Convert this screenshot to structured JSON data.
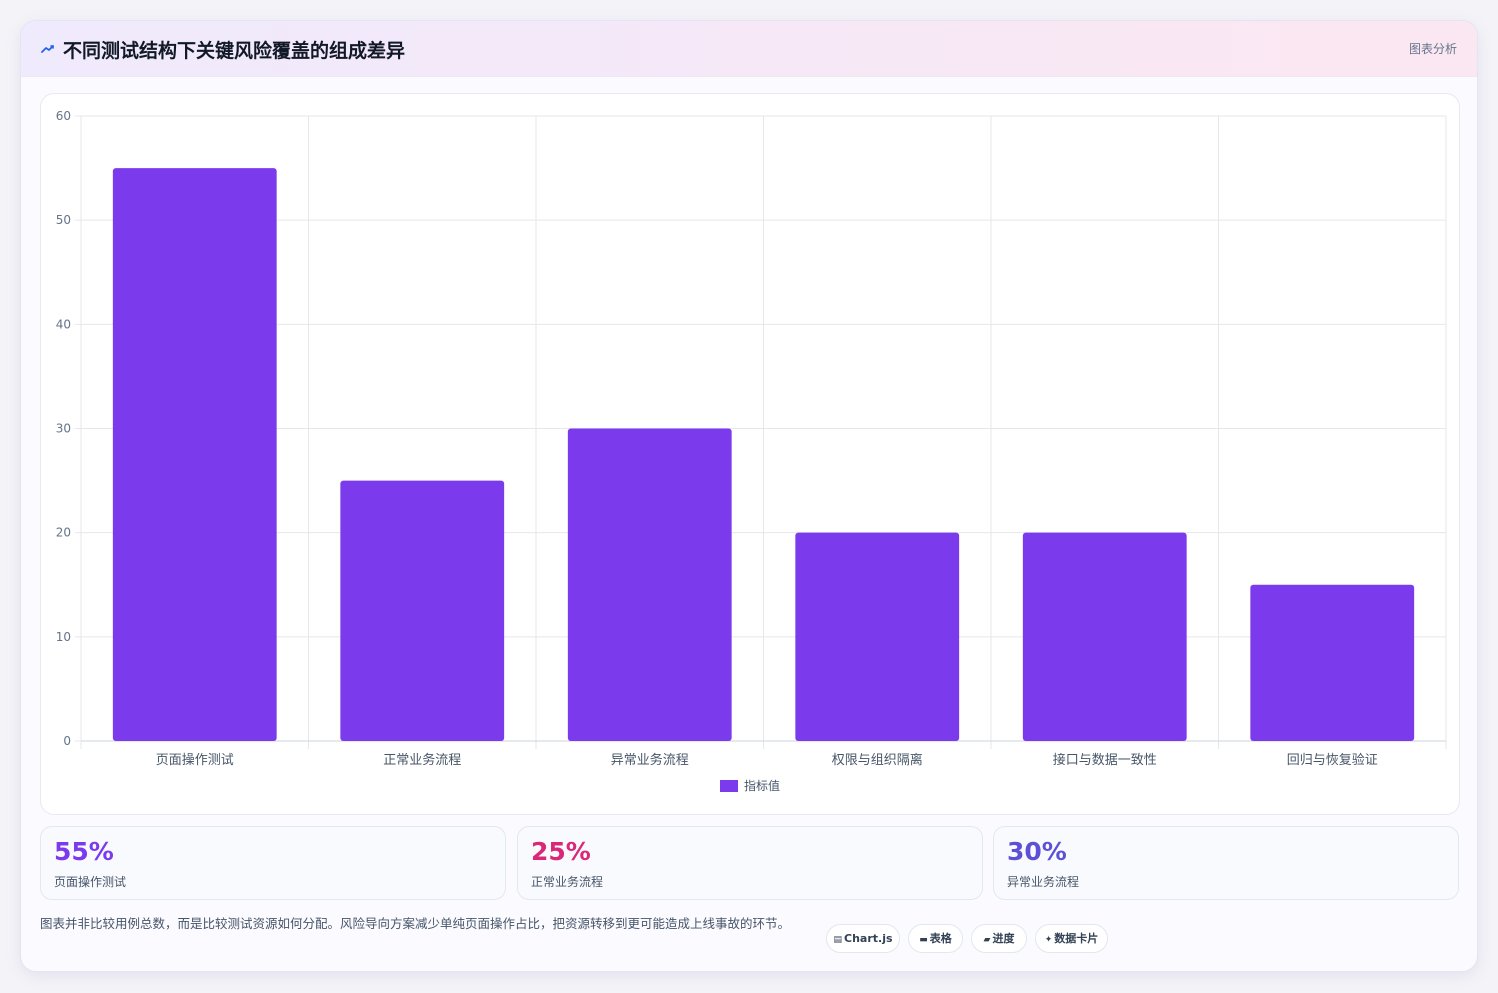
{
  "header": {
    "icon": "trend-line-icon",
    "title": "不同测试结构下关键风险覆盖的组成差异",
    "tag": "图表分析"
  },
  "chart_data": {
    "type": "bar",
    "categories": [
      "页面操作测试",
      "正常业务流程",
      "异常业务流程",
      "权限与组织隔离",
      "接口与数据一致性",
      "回归与恢复验证"
    ],
    "series": [
      {
        "name": "指标值",
        "values": [
          55,
          25,
          30,
          20,
          20,
          15
        ],
        "color": "#7c3aed"
      }
    ],
    "ylim": [
      0,
      60
    ],
    "yticks": [
      0,
      10,
      20,
      30,
      40,
      50,
      60
    ],
    "grid": true,
    "legend": "bottom-center"
  },
  "stats": [
    {
      "value": "55%",
      "label": "页面操作测试",
      "color": "#7c3aed"
    },
    {
      "value": "25%",
      "label": "正常业务流程",
      "color": "#db2777"
    },
    {
      "value": "30%",
      "label": "异常业务流程",
      "color": "#5b50d6"
    }
  ],
  "note": "图表并非比较用例总数，而是比较测试资源如何分配。风险导向方案减少单纯页面操作占比，把资源转移到更可能造成上线事故的环节。",
  "chips": [
    {
      "icon": "▤",
      "label": "Chart.js"
    },
    {
      "icon": "▬",
      "label": "表格"
    },
    {
      "icon": "▰",
      "label": "进度"
    },
    {
      "icon": "✦",
      "label": "数据卡片"
    }
  ]
}
